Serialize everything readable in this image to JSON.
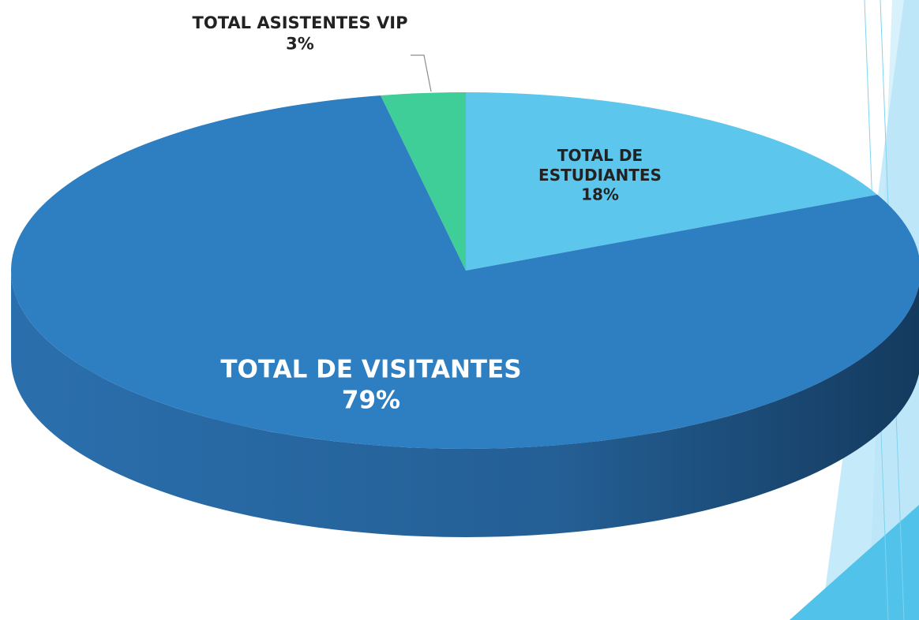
{
  "chart_data": {
    "type": "pie",
    "categories": [
      "TOTAL DE ESTUDIANTES",
      "TOTAL DE VISITANTES",
      "TOTAL ASISTENTES VIP"
    ],
    "values": [
      18,
      79,
      3
    ],
    "value_labels": [
      "18%",
      "79%",
      "3%"
    ],
    "colors": [
      "#5cc6ec",
      "#2e7ec2",
      "#3fcd98"
    ]
  }
}
